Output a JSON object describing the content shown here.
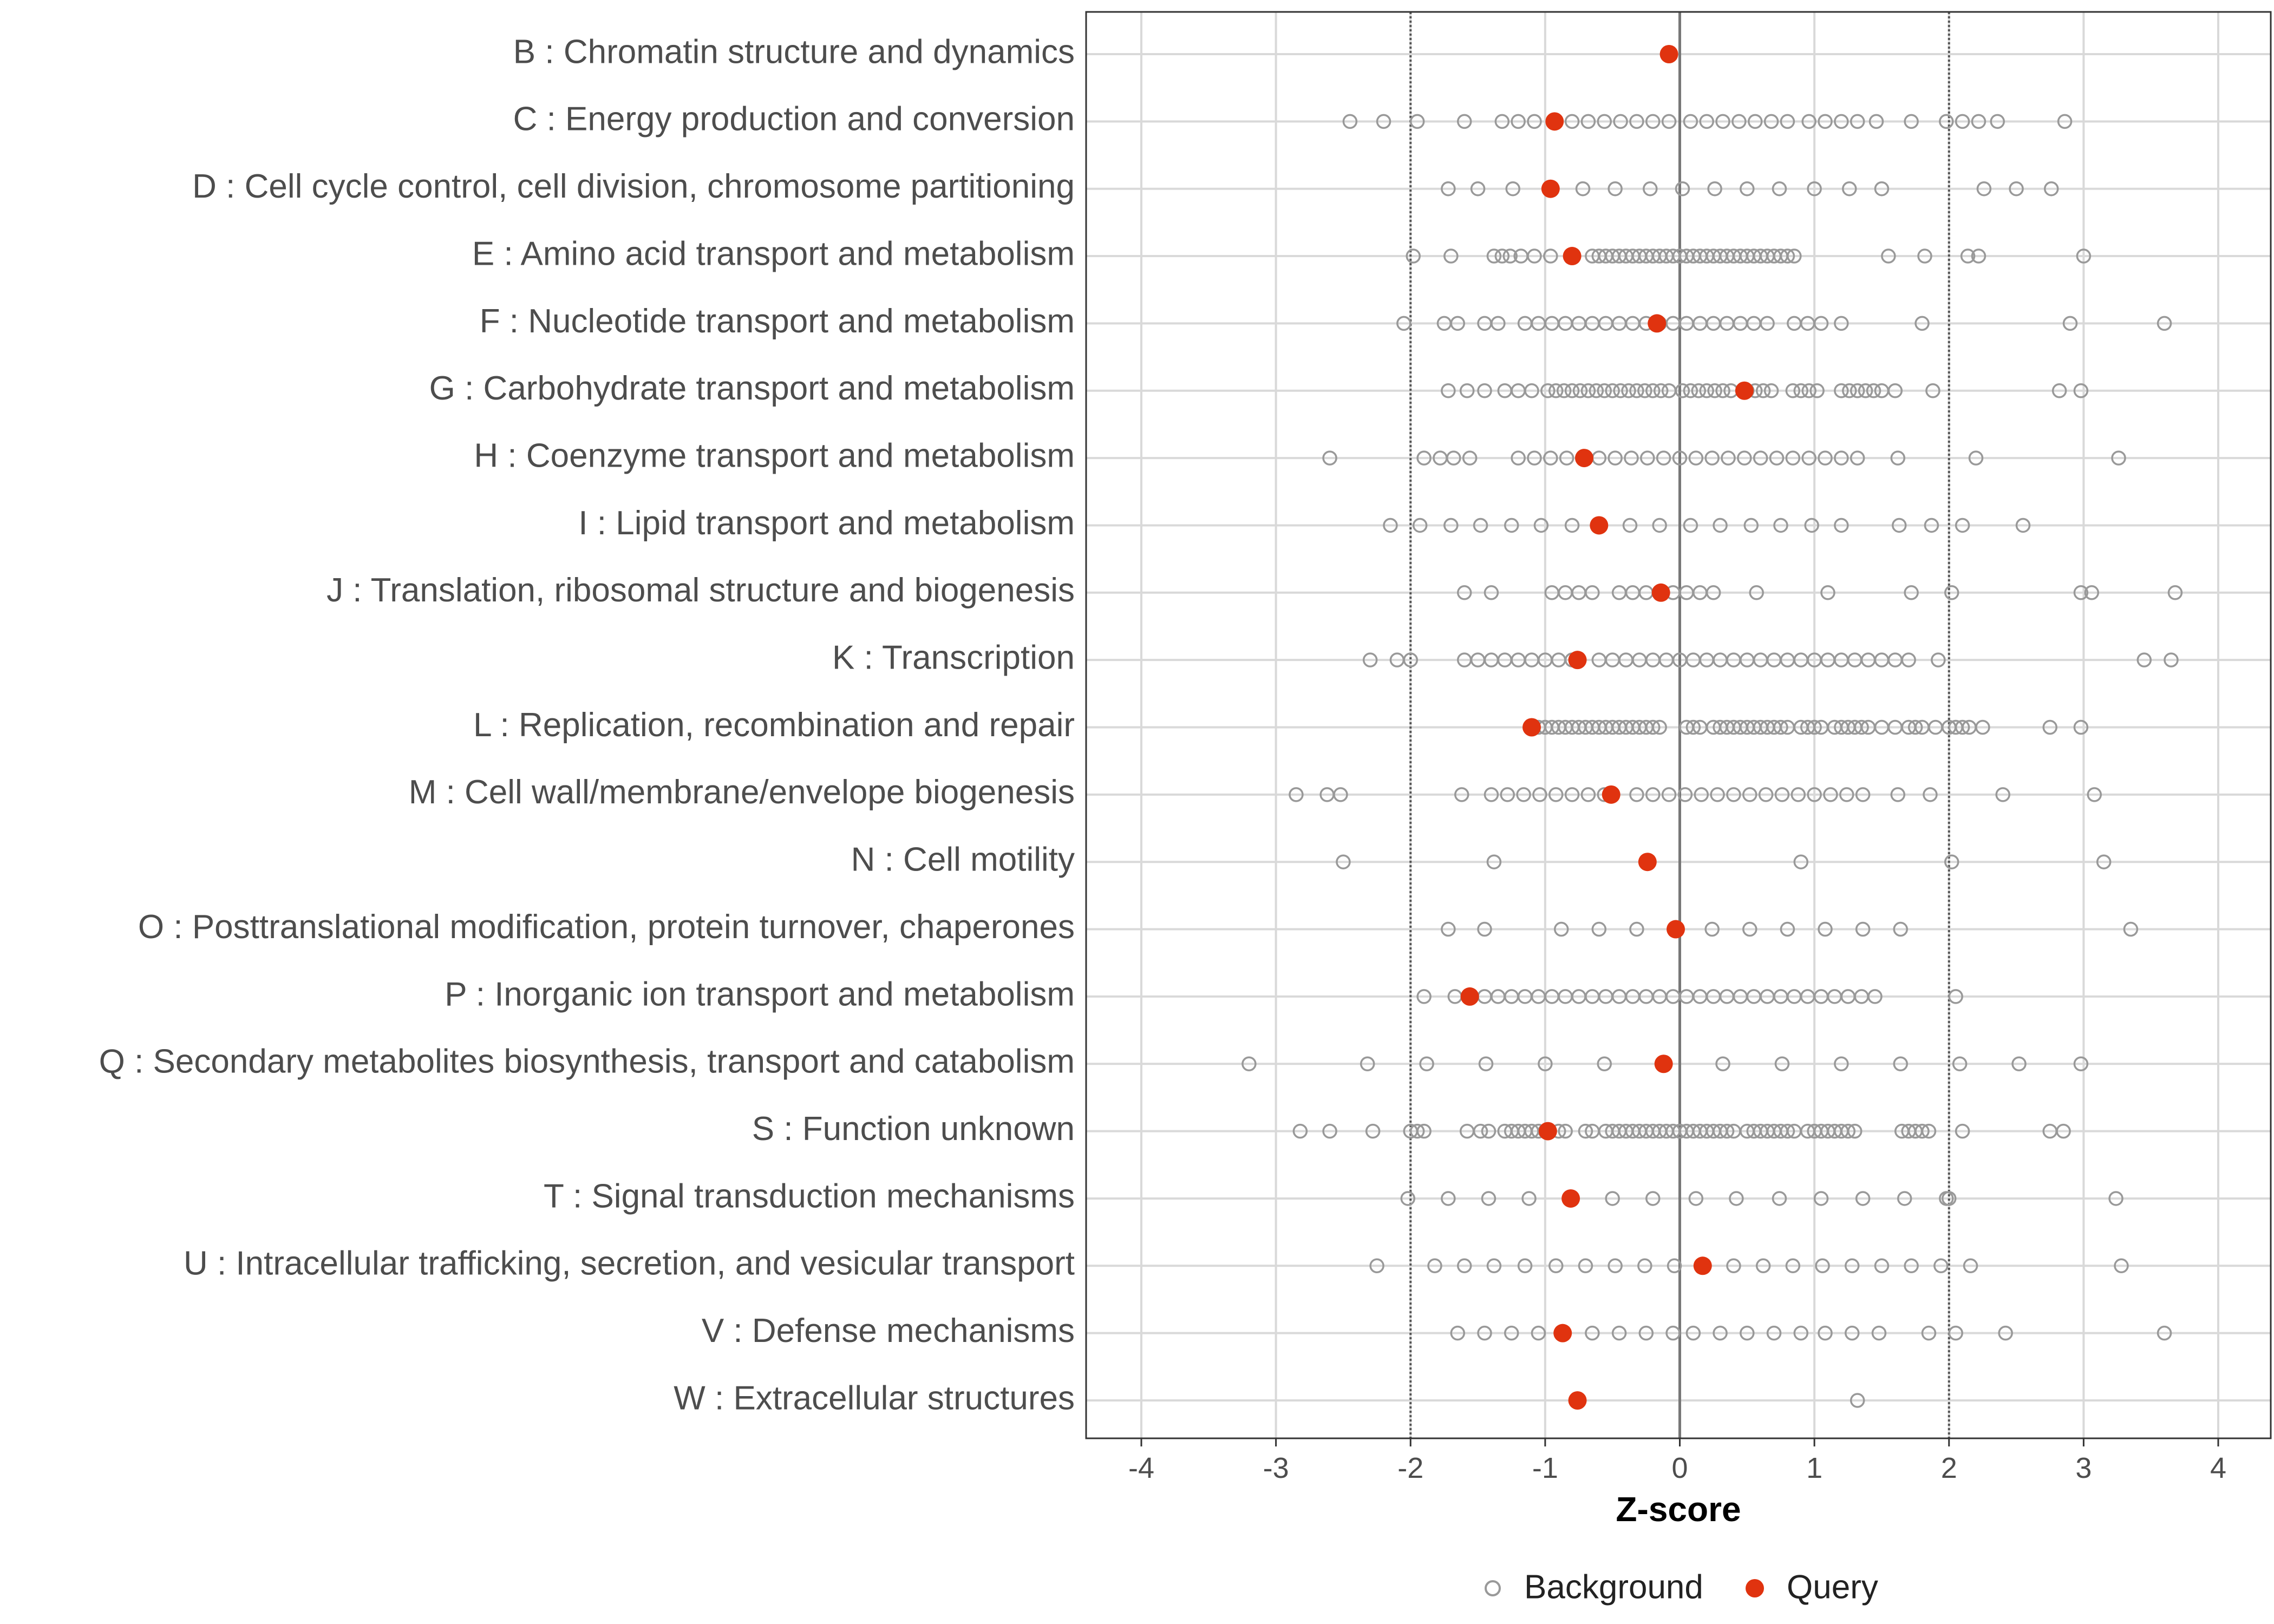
{
  "chart_data": {
    "type": "scatter",
    "title": "",
    "xlabel": "Z-score",
    "ylabel": "",
    "xlim": [
      -4.4,
      4.4
    ],
    "x_ticks": [
      "-4",
      "-3",
      "-2",
      "-1",
      "0",
      "1",
      "2",
      "3",
      "4"
    ],
    "reference_lines": {
      "dotted": [
        -2,
        2
      ],
      "solid": [
        0
      ]
    },
    "grid": true,
    "legend": {
      "position": "bottom",
      "entries": [
        "Background",
        "Query"
      ]
    },
    "colors": {
      "background": "#999999",
      "query": "#e0330f",
      "grid": "#d9d9d9"
    },
    "categories": [
      {
        "label": "B : Chromatin structure and dynamics",
        "query": -0.08,
        "background": []
      },
      {
        "label": "C : Energy production and conversion",
        "query": -0.93,
        "background": [
          -2.45,
          -2.2,
          -1.95,
          -1.6,
          -1.32,
          -1.2,
          -1.08,
          -0.93,
          -0.8,
          -0.68,
          -0.56,
          -0.44,
          -0.32,
          -0.2,
          -0.08,
          0.08,
          0.2,
          0.32,
          0.44,
          0.56,
          0.68,
          0.8,
          0.96,
          1.08,
          1.2,
          1.32,
          1.46,
          1.72,
          1.98,
          2.1,
          2.22,
          2.36,
          2.86
        ]
      },
      {
        "label": "D : Cell cycle control, cell division, chromosome partitioning",
        "query": -0.96,
        "background": [
          -1.72,
          -1.5,
          -1.24,
          -0.96,
          -0.72,
          -0.48,
          -0.22,
          0.02,
          0.26,
          0.5,
          0.74,
          1.0,
          1.26,
          1.5,
          2.26,
          2.5,
          2.76
        ]
      },
      {
        "label": "E : Amino acid transport and metabolism",
        "query": -0.8,
        "background": [
          -1.98,
          -1.7,
          -1.38,
          -1.32,
          -1.26,
          -1.18,
          -1.08,
          -0.96,
          -0.65,
          -0.6,
          -0.55,
          -0.5,
          -0.45,
          -0.4,
          -0.35,
          -0.3,
          -0.25,
          -0.2,
          -0.15,
          -0.1,
          -0.05,
          0,
          0.05,
          0.1,
          0.15,
          0.2,
          0.25,
          0.3,
          0.35,
          0.4,
          0.45,
          0.5,
          0.55,
          0.6,
          0.65,
          0.7,
          0.75,
          0.8,
          0.85,
          1.55,
          1.82,
          2.14,
          2.22,
          3.0
        ]
      },
      {
        "label": "F : Nucleotide transport and metabolism",
        "query": -0.17,
        "background": [
          -2.05,
          -1.75,
          -1.65,
          -1.45,
          -1.35,
          -1.15,
          -1.05,
          -0.95,
          -0.85,
          -0.75,
          -0.65,
          -0.55,
          -0.45,
          -0.35,
          -0.25,
          -0.15,
          -0.05,
          0.05,
          0.15,
          0.25,
          0.35,
          0.45,
          0.55,
          0.65,
          0.85,
          0.95,
          1.05,
          1.2,
          1.8,
          2.9,
          3.6
        ]
      },
      {
        "label": "G : Carbohydrate transport and metabolism",
        "query": 0.48,
        "background": [
          -1.72,
          -1.58,
          -1.45,
          -1.3,
          -1.2,
          -1.1,
          -0.98,
          -0.92,
          -0.86,
          -0.8,
          -0.74,
          -0.68,
          -0.62,
          -0.56,
          -0.5,
          -0.44,
          -0.38,
          -0.32,
          -0.26,
          -0.2,
          -0.14,
          -0.08,
          0.02,
          0.08,
          0.14,
          0.2,
          0.26,
          0.32,
          0.38,
          0.5,
          0.56,
          0.62,
          0.68,
          0.84,
          0.9,
          0.96,
          1.02,
          1.2,
          1.26,
          1.32,
          1.38,
          1.44,
          1.5,
          1.6,
          1.88,
          2.82,
          2.98
        ]
      },
      {
        "label": "H : Coenzyme transport and metabolism",
        "query": -0.71,
        "background": [
          -2.6,
          -1.9,
          -1.78,
          -1.68,
          -1.56,
          -1.2,
          -1.08,
          -0.96,
          -0.84,
          -0.6,
          -0.48,
          -0.36,
          -0.24,
          -0.12,
          0,
          0.12,
          0.24,
          0.36,
          0.48,
          0.6,
          0.72,
          0.84,
          0.96,
          1.08,
          1.2,
          1.32,
          1.62,
          2.2,
          3.26
        ]
      },
      {
        "label": "I : Lipid transport and metabolism",
        "query": -0.6,
        "background": [
          -2.15,
          -1.93,
          -1.7,
          -1.48,
          -1.25,
          -1.03,
          -0.8,
          -0.37,
          -0.15,
          0.08,
          0.3,
          0.53,
          0.75,
          0.98,
          1.2,
          1.63,
          1.87,
          2.1,
          2.55
        ]
      },
      {
        "label": "J : Translation, ribosomal structure and biogenesis",
        "query": -0.14,
        "background": [
          -1.6,
          -1.4,
          -0.95,
          -0.85,
          -0.75,
          -0.65,
          -0.45,
          -0.35,
          -0.25,
          -0.05,
          0.05,
          0.15,
          0.25,
          0.57,
          1.1,
          1.72,
          2.02,
          2.98,
          3.06,
          3.68
        ]
      },
      {
        "label": "K : Transcription",
        "query": -0.76,
        "background": [
          -2.3,
          -2.1,
          -2.0,
          -1.6,
          -1.5,
          -1.4,
          -1.3,
          -1.2,
          -1.1,
          -1.0,
          -0.9,
          -0.8,
          -0.6,
          -0.5,
          -0.4,
          -0.3,
          -0.2,
          -0.1,
          0,
          0.1,
          0.2,
          0.3,
          0.4,
          0.5,
          0.6,
          0.7,
          0.8,
          0.9,
          1.0,
          1.1,
          1.2,
          1.3,
          1.4,
          1.5,
          1.6,
          1.7,
          1.92,
          3.45,
          3.65
        ]
      },
      {
        "label": "L : Replication, recombination and repair",
        "query": -1.1,
        "background": [
          -1.05,
          -1.0,
          -0.95,
          -0.9,
          -0.85,
          -0.8,
          -0.75,
          -0.7,
          -0.65,
          -0.6,
          -0.55,
          -0.5,
          -0.45,
          -0.4,
          -0.35,
          -0.3,
          -0.25,
          -0.2,
          -0.15,
          0.05,
          0.1,
          0.15,
          0.25,
          0.3,
          0.35,
          0.4,
          0.45,
          0.5,
          0.55,
          0.6,
          0.65,
          0.7,
          0.75,
          0.8,
          0.9,
          0.95,
          1.0,
          1.05,
          1.15,
          1.2,
          1.25,
          1.3,
          1.35,
          1.4,
          1.5,
          1.6,
          1.7,
          1.75,
          1.8,
          1.9,
          2.0,
          2.05,
          2.1,
          2.15,
          2.25,
          2.75,
          2.98
        ]
      },
      {
        "label": "M : Cell wall/membrane/envelope biogenesis",
        "query": -0.51,
        "background": [
          -2.85,
          -2.62,
          -2.52,
          -1.62,
          -1.4,
          -1.28,
          -1.16,
          -1.04,
          -0.92,
          -0.8,
          -0.68,
          -0.56,
          -0.32,
          -0.2,
          -0.08,
          0.04,
          0.16,
          0.28,
          0.4,
          0.52,
          0.64,
          0.76,
          0.88,
          1.0,
          1.12,
          1.24,
          1.36,
          1.62,
          1.86,
          2.4,
          3.08
        ]
      },
      {
        "label": "N : Cell motility",
        "query": -0.24,
        "background": [
          -2.5,
          -1.38,
          0.9,
          2.02,
          3.15
        ]
      },
      {
        "label": "O : Posttranslational modification, protein turnover, chaperones",
        "query": -0.03,
        "background": [
          -1.72,
          -1.45,
          -0.88,
          -0.6,
          -0.32,
          0.24,
          0.52,
          0.8,
          1.08,
          1.36,
          1.64,
          3.35
        ]
      },
      {
        "label": "P : Inorganic ion transport and metabolism",
        "query": -1.56,
        "background": [
          -1.9,
          -1.67,
          -1.45,
          -1.35,
          -1.25,
          -1.15,
          -1.05,
          -0.95,
          -0.85,
          -0.75,
          -0.65,
          -0.55,
          -0.45,
          -0.35,
          -0.25,
          -0.15,
          -0.05,
          0.05,
          0.15,
          0.25,
          0.35,
          0.45,
          0.55,
          0.65,
          0.75,
          0.85,
          0.95,
          1.05,
          1.15,
          1.25,
          1.35,
          1.45,
          2.05
        ]
      },
      {
        "label": "Q : Secondary metabolites biosynthesis, transport and catabolism",
        "query": -0.12,
        "background": [
          -3.2,
          -2.32,
          -1.88,
          -1.44,
          -1.0,
          -0.56,
          0.32,
          0.76,
          1.2,
          1.64,
          2.08,
          2.52,
          2.98
        ]
      },
      {
        "label": "S : Function unknown",
        "query": -0.98,
        "background": [
          -2.82,
          -2.6,
          -2.28,
          -2.0,
          -1.95,
          -1.9,
          -1.58,
          -1.48,
          -1.42,
          -1.3,
          -1.25,
          -1.2,
          -1.15,
          -1.1,
          -1.05,
          -1.0,
          -0.9,
          -0.85,
          -0.7,
          -0.65,
          -0.55,
          -0.5,
          -0.45,
          -0.4,
          -0.35,
          -0.3,
          -0.25,
          -0.2,
          -0.15,
          -0.1,
          -0.05,
          0,
          0.05,
          0.1,
          0.15,
          0.2,
          0.25,
          0.3,
          0.35,
          0.4,
          0.5,
          0.55,
          0.6,
          0.65,
          0.7,
          0.75,
          0.8,
          0.85,
          0.95,
          1.0,
          1.05,
          1.1,
          1.15,
          1.2,
          1.25,
          1.3,
          1.65,
          1.7,
          1.75,
          1.8,
          1.85,
          2.1,
          2.75,
          2.85
        ]
      },
      {
        "label": "T : Signal transduction mechanisms",
        "query": -0.81,
        "background": [
          -2.02,
          -1.72,
          -1.42,
          -1.12,
          -0.5,
          -0.2,
          0.12,
          0.42,
          0.74,
          1.05,
          1.36,
          1.67,
          1.98,
          2.0,
          3.24
        ]
      },
      {
        "label": "U : Intracellular trafficking, secretion, and vesicular transport",
        "query": 0.17,
        "background": [
          -2.25,
          -1.82,
          -1.6,
          -1.38,
          -1.15,
          -0.92,
          -0.7,
          -0.48,
          -0.26,
          -0.04,
          0.4,
          0.62,
          0.84,
          1.06,
          1.28,
          1.5,
          1.72,
          1.94,
          2.16,
          3.28
        ]
      },
      {
        "label": "V : Defense mechanisms",
        "query": -0.87,
        "background": [
          -1.65,
          -1.45,
          -1.25,
          -1.05,
          -0.65,
          -0.45,
          -0.25,
          -0.05,
          0.1,
          0.3,
          0.5,
          0.7,
          0.9,
          1.08,
          1.28,
          1.48,
          1.85,
          2.05,
          2.42,
          3.6
        ]
      },
      {
        "label": "W : Extracellular structures",
        "query": -0.76,
        "background": [
          1.32
        ]
      }
    ]
  }
}
